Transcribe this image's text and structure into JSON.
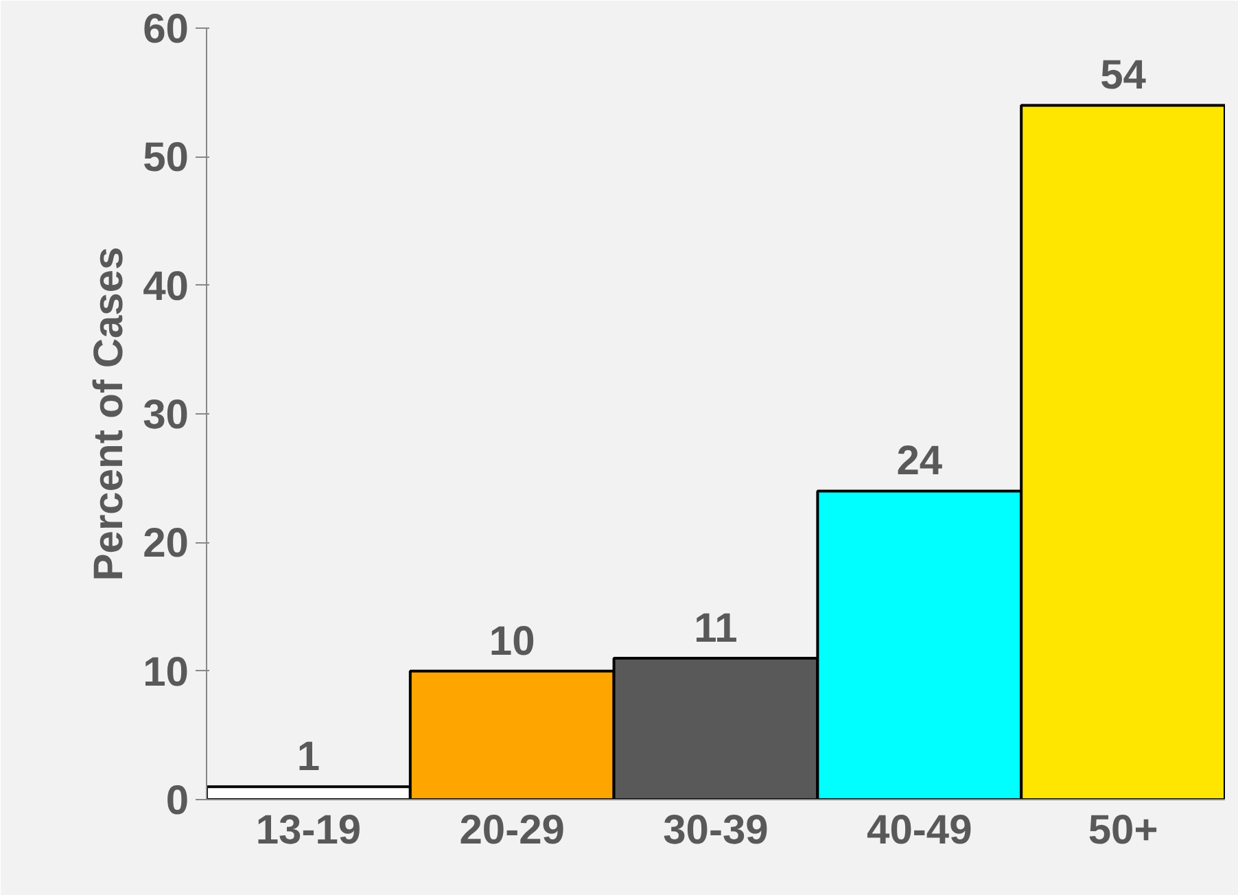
{
  "chart_data": {
    "type": "bar",
    "ylabel": "Percent of Cases",
    "categories": [
      "13-19",
      "20-29",
      "30-39",
      "40-49",
      "50+"
    ],
    "values": [
      1,
      10,
      11,
      24,
      54
    ],
    "colors": [
      "#ffffff",
      "#ffa500",
      "#595959",
      "#00ffff",
      "#ffe600"
    ],
    "ylim": [
      0,
      60
    ],
    "yticks": [
      0,
      10,
      20,
      30,
      40,
      50,
      60
    ],
    "grid": false,
    "data_labels": true
  }
}
